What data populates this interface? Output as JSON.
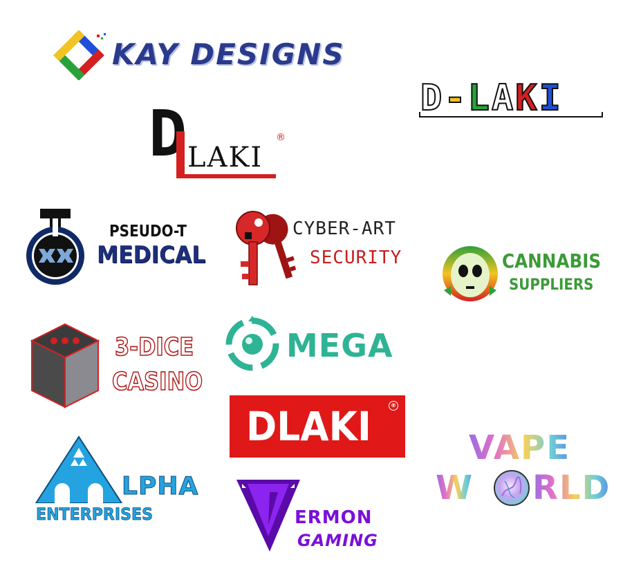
{
  "logos": {
    "kay_designs": {
      "text": "KAY DESIGNS"
    },
    "d_laki_outline": {
      "d": "D",
      "dash": "-",
      "l": "L",
      "a": "A",
      "k": "K",
      "i": "I"
    },
    "d_laki_registered": {
      "d": "D",
      "laki": "LAKI",
      "reg": "®"
    },
    "pseudo_t_medical": {
      "line1": "PSEUDO-T",
      "line2": "MEDICAL",
      "icon_letter": "T"
    },
    "cyber_art_security": {
      "line1": "CYBER-ART",
      "line2": "SECURITY"
    },
    "cannabis_suppliers": {
      "line1": "CANNABIS",
      "line2": "SUPPLIERS"
    },
    "three_dice_casino": {
      "line1": "3-DICE",
      "line2": "CASINO"
    },
    "mega": {
      "text": "MEGA"
    },
    "dlaki_red": {
      "text": "DLAKI",
      "reg": "®"
    },
    "alpha_enterprises": {
      "line1": "LPHA",
      "line2": "ENTERPRISES"
    },
    "vermon_gaming": {
      "line1": "ERMON",
      "line2": "GAMING"
    },
    "vape_world": {
      "line1": "VAPE",
      "line2a": "W",
      "line2b": "RLD"
    }
  },
  "colors": {
    "kay_blue": "#2a3a8c",
    "dlaki_red": "#e01818",
    "medical_blue": "#1d2f7a",
    "cyber_red": "#c42020",
    "cannabis_green": "#3c9a37",
    "mega_teal": "#2fb395",
    "alpha_blue": "#25a3e0",
    "vermon_purple": "#7a10d8"
  }
}
